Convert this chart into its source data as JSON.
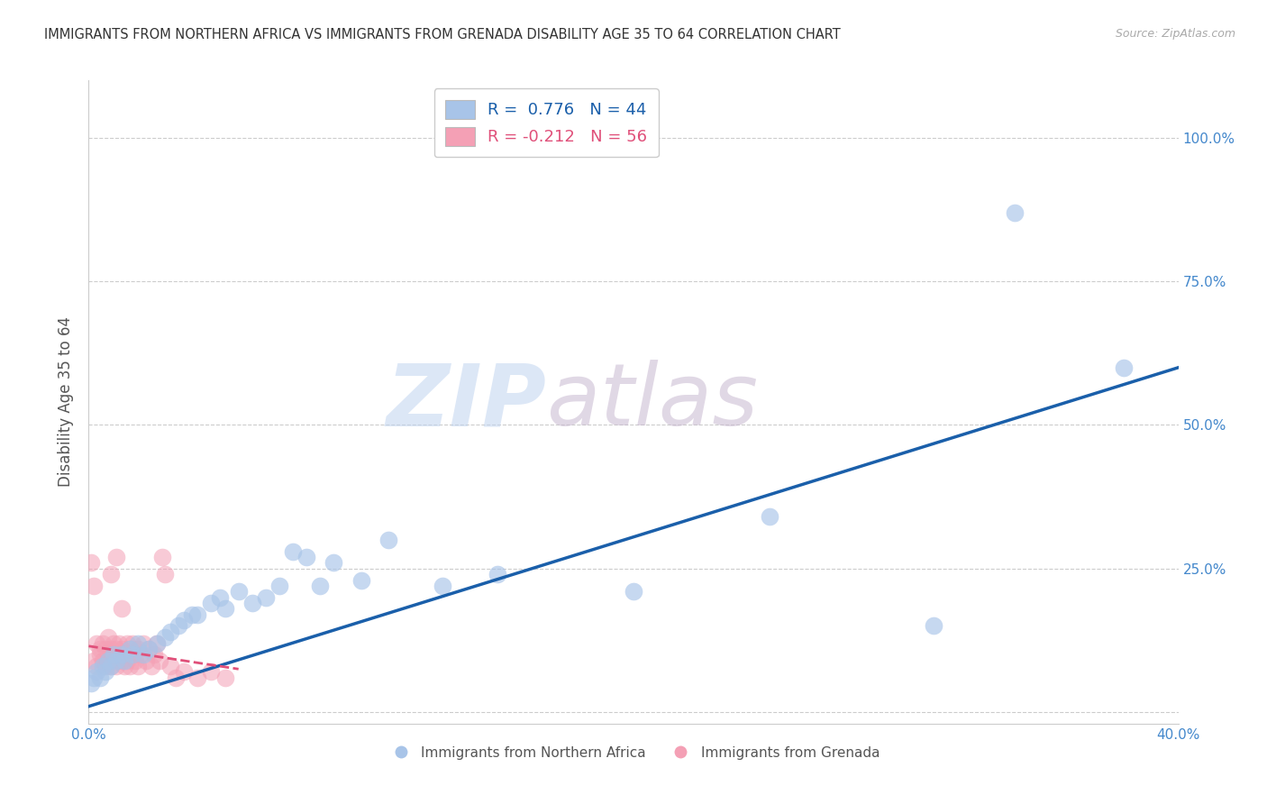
{
  "title": "IMMIGRANTS FROM NORTHERN AFRICA VS IMMIGRANTS FROM GRENADA DISABILITY AGE 35 TO 64 CORRELATION CHART",
  "source": "Source: ZipAtlas.com",
  "ylabel": "Disability Age 35 to 64",
  "xlim": [
    0.0,
    0.4
  ],
  "ylim": [
    -0.02,
    1.1
  ],
  "y_ticks": [
    0.0,
    0.25,
    0.5,
    0.75,
    1.0
  ],
  "y_tick_labels": [
    "",
    "25.0%",
    "50.0%",
    "75.0%",
    "100.0%"
  ],
  "x_ticks": [
    0.0,
    0.05,
    0.1,
    0.15,
    0.2,
    0.25,
    0.3,
    0.35,
    0.4
  ],
  "x_tick_labels": [
    "0.0%",
    "",
    "",
    "",
    "",
    "",
    "",
    "",
    "40.0%"
  ],
  "legend1_label": "R =  0.776   N = 44",
  "legend2_label": "R = -0.212   N = 56",
  "blue_color": "#a8c4e8",
  "pink_color": "#f4a0b5",
  "trend_blue": "#1a5faa",
  "trend_pink": "#e0507a",
  "watermark_zip_color": "#c0d4f0",
  "watermark_atlas_color": "#c8b8d0",
  "background_color": "#ffffff",
  "grid_color": "#cccccc",
  "tick_color": "#4488cc",
  "title_color": "#333333",
  "source_color": "#aaaaaa",
  "ylabel_color": "#555555",
  "blue_scatter_x": [
    0.001,
    0.002,
    0.003,
    0.004,
    0.005,
    0.006,
    0.007,
    0.008,
    0.009,
    0.01,
    0.012,
    0.013,
    0.015,
    0.016,
    0.018,
    0.02,
    0.022,
    0.025,
    0.028,
    0.03,
    0.033,
    0.035,
    0.038,
    0.04,
    0.045,
    0.048,
    0.05,
    0.055,
    0.06,
    0.065,
    0.07,
    0.075,
    0.08,
    0.085,
    0.09,
    0.1,
    0.11,
    0.13,
    0.15,
    0.2,
    0.25,
    0.31,
    0.34,
    0.38
  ],
  "blue_scatter_y": [
    0.05,
    0.06,
    0.07,
    0.06,
    0.08,
    0.07,
    0.09,
    0.08,
    0.1,
    0.09,
    0.1,
    0.09,
    0.11,
    0.1,
    0.12,
    0.1,
    0.11,
    0.12,
    0.13,
    0.14,
    0.15,
    0.16,
    0.17,
    0.17,
    0.19,
    0.2,
    0.18,
    0.21,
    0.19,
    0.2,
    0.22,
    0.28,
    0.27,
    0.22,
    0.26,
    0.23,
    0.3,
    0.22,
    0.24,
    0.21,
    0.34,
    0.15,
    0.87,
    0.6
  ],
  "pink_scatter_x": [
    0.001,
    0.002,
    0.002,
    0.003,
    0.003,
    0.004,
    0.004,
    0.005,
    0.005,
    0.006,
    0.006,
    0.007,
    0.007,
    0.007,
    0.008,
    0.008,
    0.008,
    0.009,
    0.009,
    0.01,
    0.01,
    0.01,
    0.011,
    0.011,
    0.012,
    0.012,
    0.013,
    0.013,
    0.014,
    0.014,
    0.015,
    0.015,
    0.016,
    0.016,
    0.017,
    0.018,
    0.018,
    0.019,
    0.02,
    0.021,
    0.022,
    0.023,
    0.024,
    0.025,
    0.026,
    0.027,
    0.028,
    0.03,
    0.032,
    0.035,
    0.04,
    0.045,
    0.05,
    0.01,
    0.012,
    0.008
  ],
  "pink_scatter_y": [
    0.26,
    0.09,
    0.22,
    0.12,
    0.08,
    0.11,
    0.1,
    0.09,
    0.12,
    0.11,
    0.08,
    0.1,
    0.09,
    0.13,
    0.08,
    0.11,
    0.09,
    0.1,
    0.12,
    0.09,
    0.11,
    0.08,
    0.1,
    0.12,
    0.09,
    0.11,
    0.08,
    0.1,
    0.12,
    0.09,
    0.11,
    0.08,
    0.1,
    0.12,
    0.09,
    0.11,
    0.08,
    0.1,
    0.12,
    0.09,
    0.11,
    0.08,
    0.1,
    0.12,
    0.09,
    0.27,
    0.24,
    0.08,
    0.06,
    0.07,
    0.06,
    0.07,
    0.06,
    0.27,
    0.18,
    0.24
  ],
  "blue_trendline_x": [
    0.0,
    0.4
  ],
  "blue_trendline_y": [
    0.01,
    0.6
  ],
  "pink_trendline_x": [
    0.0,
    0.055
  ],
  "pink_trendline_y": [
    0.115,
    0.075
  ]
}
